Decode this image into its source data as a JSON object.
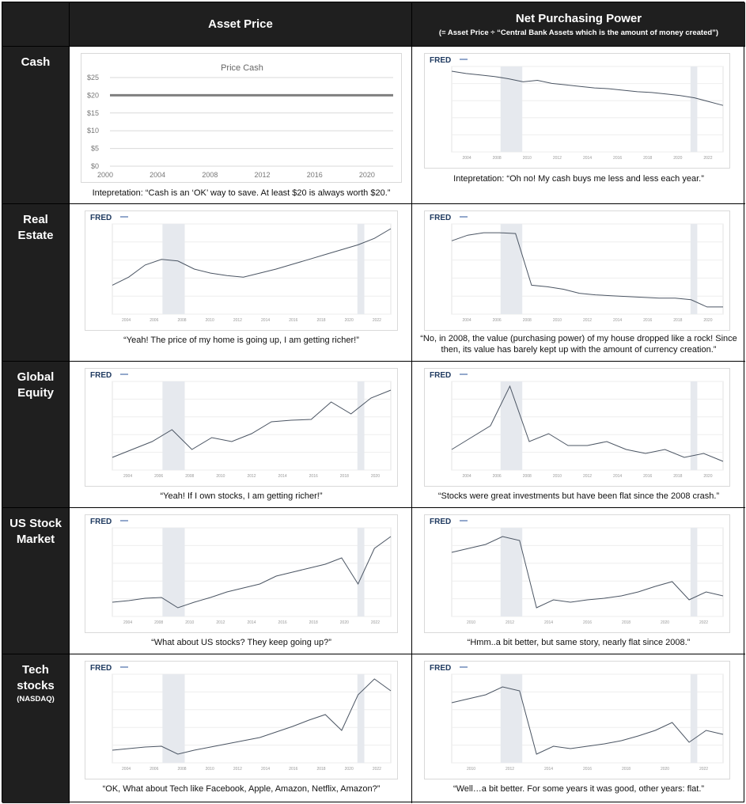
{
  "header": {
    "col1": "Asset Price",
    "col2": "Net Purchasing Power",
    "col2_sub": "(= Asset Price ÷ “Central Bank Assets which is the amount of money created”)"
  },
  "rows": [
    {
      "label": "Cash",
      "sublabel": ""
    },
    {
      "label": "Real Estate",
      "sublabel": ""
    },
    {
      "label": "Global Equity",
      "sublabel": ""
    },
    {
      "label": "US Stock Market",
      "sublabel": ""
    },
    {
      "label": "Tech stocks",
      "sublabel": "(NASDAQ)"
    }
  ],
  "captions": {
    "cash_price": "Intepretation: “Cash is an ‘OK’ way to save. At least $20 is always worth $20.”",
    "cash_power": "Intepretation: “Oh no! My cash buys me less and less each year.”",
    "re_price": "“Yeah! The price of my home is going up, I am getting richer!”",
    "re_power": "“No, in 2008, the value (purchasing power) of my house dropped like a rock! Since then, its value has barely kept up with the amount of currency creation.”",
    "ge_price": "“Yeah! If I own stocks, I am getting richer!”",
    "ge_power": "“Stocks were great investments but have been flat since the 2008 crash.”",
    "us_price": "“What about US stocks? They keep going up?”",
    "us_power": "“Hmm..a bit better, but same story, nearly flat since 2008.”",
    "tech_price": "“OK, What about Tech like Facebook, Apple, Amazon, Netflix, Amazon?”",
    "tech_power": "“Well…a bit better. For some years it was good, other years: flat.”"
  },
  "fred_logo": "FRED",
  "colors": {
    "dark": "#1f1f1f",
    "fred_line": "#4b5563",
    "recession": "#e6e9ee",
    "cash_line": "#7f7f7f"
  },
  "chart_data": [
    {
      "type": "line",
      "title": "Price Cash",
      "x": [
        2000,
        2022
      ],
      "xticks": [
        "2000",
        "2004",
        "2008",
        "2012",
        "2016",
        "2020"
      ],
      "yticks": [
        "$0",
        "$5",
        "$10",
        "$15",
        "$20",
        "$25"
      ],
      "ylim": [
        0,
        25
      ],
      "series": [
        {
          "values": [
            20,
            20
          ]
        }
      ],
      "grid": true
    },
    {
      "type": "line",
      "description_shape": "declining",
      "source": "FRED",
      "xticks": [
        "2004",
        "2008",
        "2010",
        "2012",
        "2014",
        "2016",
        "2018",
        "2020",
        "2022"
      ],
      "values": [
        1.0,
        0.97,
        0.95,
        0.93,
        0.9,
        0.86,
        0.88,
        0.84,
        0.82,
        0.8,
        0.78,
        0.77,
        0.75,
        0.73,
        0.72,
        0.7,
        0.68,
        0.65,
        0.6,
        0.55
      ]
    },
    {
      "type": "line",
      "source": "FRED",
      "xticks": [
        "2004",
        "2006",
        "2008",
        "2010",
        "2012",
        "2014",
        "2016",
        "2018",
        "2020",
        "2022"
      ],
      "values": [
        0.3,
        0.4,
        0.55,
        0.62,
        0.6,
        0.5,
        0.45,
        0.42,
        0.4,
        0.45,
        0.5,
        0.56,
        0.62,
        0.68,
        0.74,
        0.8,
        0.88,
        1.0
      ]
    },
    {
      "type": "line",
      "source": "FRED",
      "xticks": [
        "2004",
        "2006",
        "2008",
        "2010",
        "2012",
        "2014",
        "2016",
        "2018",
        "2020"
      ],
      "values": [
        0.85,
        0.92,
        0.95,
        0.95,
        0.94,
        0.3,
        0.28,
        0.25,
        0.2,
        0.18,
        0.17,
        0.16,
        0.15,
        0.14,
        0.14,
        0.12,
        0.03,
        0.03
      ]
    },
    {
      "type": "line",
      "source": "FRED",
      "xticks": [
        "2004",
        "2006",
        "2008",
        "2010",
        "2012",
        "2014",
        "2016",
        "2018",
        "2020"
      ],
      "values": [
        0.1,
        0.2,
        0.3,
        0.45,
        0.2,
        0.35,
        0.3,
        0.4,
        0.55,
        0.57,
        0.58,
        0.8,
        0.65,
        0.85,
        0.95
      ]
    },
    {
      "type": "line",
      "source": "FRED",
      "xticks": [
        "2004",
        "2006",
        "2008",
        "2010",
        "2012",
        "2014",
        "2016",
        "2018",
        "2020"
      ],
      "values": [
        0.2,
        0.35,
        0.5,
        1.0,
        0.3,
        0.4,
        0.25,
        0.25,
        0.3,
        0.2,
        0.15,
        0.2,
        0.1,
        0.15,
        0.05
      ]
    },
    {
      "type": "line",
      "source": "FRED",
      "xticks": [
        "2004",
        "2008",
        "2010",
        "2012",
        "2014",
        "2016",
        "2018",
        "2020",
        "2022"
      ],
      "values": [
        0.12,
        0.14,
        0.17,
        0.18,
        0.05,
        0.12,
        0.18,
        0.25,
        0.3,
        0.35,
        0.45,
        0.5,
        0.55,
        0.6,
        0.68,
        0.35,
        0.8,
        0.95
      ]
    },
    {
      "type": "line",
      "source": "FRED",
      "xticks": [
        "2010",
        "2012",
        "2014",
        "2016",
        "2018",
        "2020",
        "2022"
      ],
      "values": [
        0.75,
        0.8,
        0.85,
        0.95,
        0.9,
        0.05,
        0.15,
        0.12,
        0.15,
        0.17,
        0.2,
        0.25,
        0.32,
        0.38,
        0.15,
        0.25,
        0.2
      ]
    },
    {
      "type": "line",
      "source": "FRED",
      "xticks": [
        "2004",
        "2006",
        "2008",
        "2010",
        "2012",
        "2014",
        "2016",
        "2018",
        "2020",
        "2022"
      ],
      "values": [
        0.1,
        0.12,
        0.14,
        0.15,
        0.05,
        0.1,
        0.14,
        0.18,
        0.22,
        0.26,
        0.33,
        0.4,
        0.48,
        0.55,
        0.35,
        0.8,
        1.0,
        0.85
      ]
    },
    {
      "type": "line",
      "source": "FRED",
      "xticks": [
        "2010",
        "2012",
        "2014",
        "2016",
        "2018",
        "2020",
        "2022"
      ],
      "values": [
        0.7,
        0.75,
        0.8,
        0.9,
        0.85,
        0.05,
        0.15,
        0.12,
        0.15,
        0.18,
        0.22,
        0.28,
        0.35,
        0.45,
        0.2,
        0.35,
        0.3
      ]
    }
  ]
}
